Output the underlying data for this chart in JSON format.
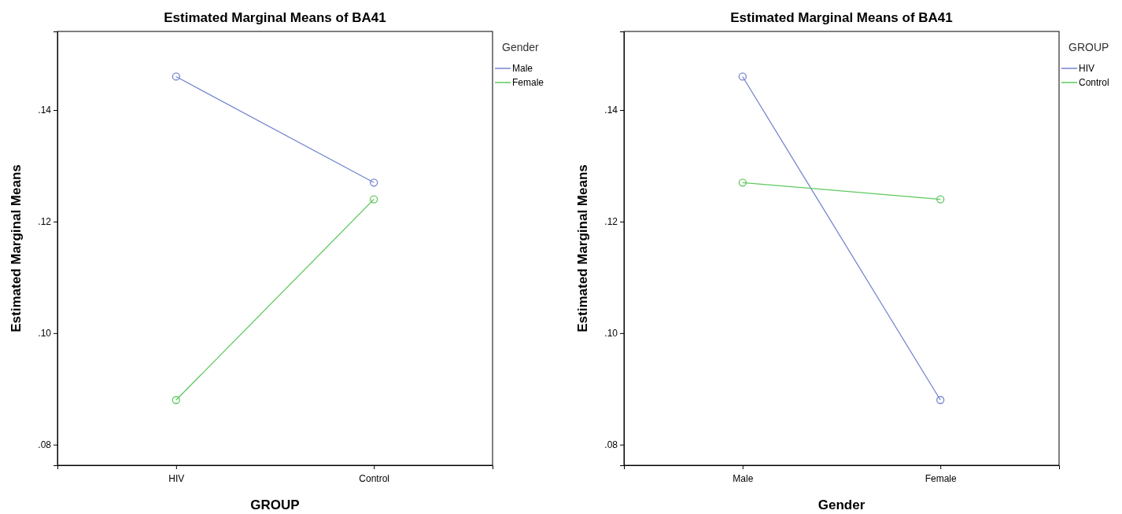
{
  "chart_data": [
    {
      "type": "line",
      "title": "Estimated Marginal Means of BA41",
      "xlabel": "GROUP",
      "ylabel": "Estimated Marginal Means",
      "legend_title": "Gender",
      "legend": "top right",
      "marker": "circle",
      "grid": false,
      "categories": [
        "HIV",
        "Control"
      ],
      "ylim": [
        0.0763,
        0.1541
      ],
      "yticks": [
        {
          "value": 0.08,
          "label": ".08"
        },
        {
          "value": 0.1,
          "label": ".10"
        },
        {
          "value": 0.12,
          "label": ".12"
        },
        {
          "value": 0.14,
          "label": ".14"
        }
      ],
      "series": [
        {
          "name": "Male",
          "color": "#7485cf",
          "values": [
            0.146,
            0.127
          ]
        },
        {
          "name": "Female",
          "color": "#5ec85e",
          "values": [
            0.088,
            0.124
          ]
        }
      ]
    },
    {
      "type": "line",
      "title": "Estimated Marginal Means of BA41",
      "xlabel": "Gender",
      "ylabel": "Estimated Marginal Means",
      "legend_title": "GROUP",
      "legend": "top right",
      "marker": "circle",
      "grid": false,
      "categories": [
        "Male",
        "Female"
      ],
      "ylim": [
        0.0763,
        0.1541
      ],
      "yticks": [
        {
          "value": 0.08,
          "label": ".08"
        },
        {
          "value": 0.1,
          "label": ".10"
        },
        {
          "value": 0.12,
          "label": ".12"
        },
        {
          "value": 0.14,
          "label": ".14"
        }
      ],
      "series": [
        {
          "name": "HIV",
          "color": "#7485cf",
          "values": [
            0.146,
            0.088
          ]
        },
        {
          "name": "Control",
          "color": "#5ec85e",
          "values": [
            0.127,
            0.124
          ]
        }
      ]
    }
  ]
}
